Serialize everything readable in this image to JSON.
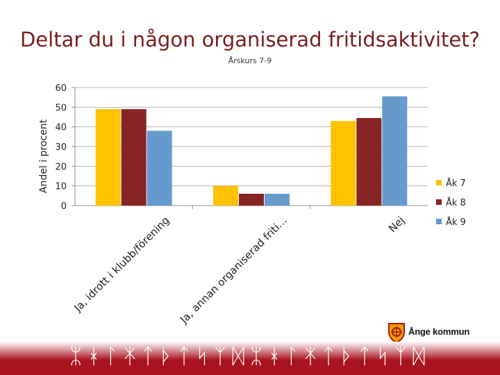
{
  "slide": {
    "title": "Deltar du i någon organiserad fritidsaktivitet?",
    "subtitle": "Årskurs 7-9"
  },
  "brand": {
    "logo_text": "Ånge kommun",
    "footer_runes": "ᛯᚼᛚᛡᛏᚦᛏᛋᛉᛞᛯᚼᛚᛡᛏᚦᛏᛋᛉᛞ"
  },
  "colors": {
    "title": "#7a1e1e",
    "series": [
      "#fec200",
      "#862523",
      "#6699cc"
    ],
    "axis": "#888888",
    "grid": "#b5b5b5",
    "footer_start": "#ffffff",
    "footer_end": "#a8131e"
  },
  "chart_data": {
    "type": "bar",
    "title": "",
    "xlabel": "",
    "ylabel": "Andel i procent",
    "ylim": [
      0,
      60
    ],
    "yticks": [
      0,
      10,
      20,
      30,
      40,
      50,
      60
    ],
    "grid": true,
    "legend_position": "right",
    "categories": [
      "Ja, idrott i klubb/förening",
      "Ja, annan organiserad friti...",
      "Nej"
    ],
    "category_tick_labels": [
      "Ja, idrott i klubb/förening",
      "Ja, annan organiserad friti…",
      "Nej"
    ],
    "series": [
      {
        "name": "Åk 7",
        "values": [
          49,
          10,
          43
        ]
      },
      {
        "name": "Åk 8",
        "values": [
          49,
          6,
          44.5
        ]
      },
      {
        "name": "Åk 9",
        "values": [
          38,
          6,
          55.5
        ]
      }
    ]
  }
}
